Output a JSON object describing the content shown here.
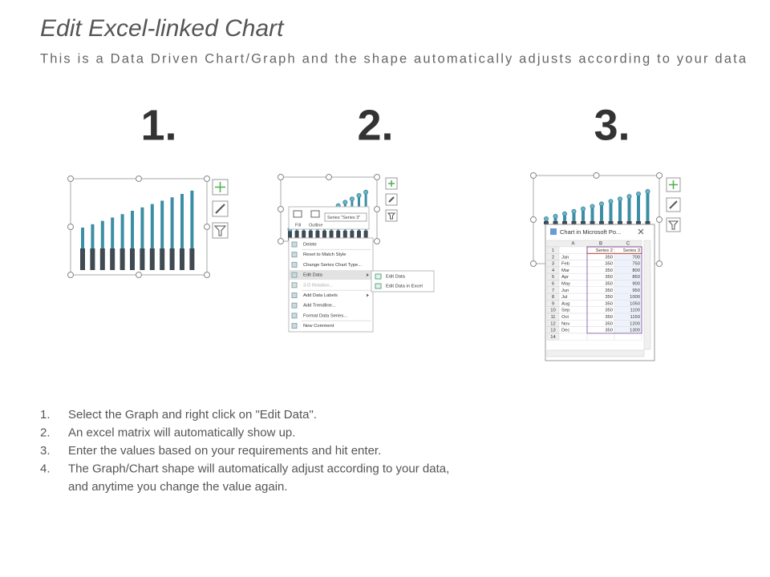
{
  "header": {
    "title": "Edit Excel-linked Chart",
    "subtitle": "This is a Data Driven Chart/Graph and the shape automatically adjusts according to your data"
  },
  "step_numbers": [
    "1.",
    "2.",
    "3."
  ],
  "panel2": {
    "toolbar": {
      "fill": "Fill",
      "outline": "Outline",
      "series": "Series \"Series 3\""
    },
    "menu": [
      "Delete",
      "Reset to Match Style",
      "Change Series Chart Type...",
      "Edit Data",
      "3-D Rotation...",
      "Add Data Labels",
      "Add Trendline...",
      "Format Data Series...",
      "New Comment"
    ],
    "submenu": [
      "Edit Data",
      "Edit Data in Excel"
    ]
  },
  "panel3": {
    "window_title": "Chart in Microsoft Po...",
    "columns": [
      "A",
      "B",
      "C"
    ],
    "rows": [
      [
        "1",
        "",
        "Series 2",
        "Series 3"
      ],
      [
        "2",
        "Jan",
        350,
        700
      ],
      [
        "3",
        "Feb",
        350,
        750
      ],
      [
        "4",
        "Mar",
        350,
        800
      ],
      [
        "5",
        "Apr",
        350,
        850
      ],
      [
        "6",
        "May",
        350,
        900
      ],
      [
        "7",
        "Jun",
        350,
        950
      ],
      [
        "8",
        "Jul",
        350,
        1000
      ],
      [
        "9",
        "Aug",
        350,
        1050
      ],
      [
        "10",
        "Sep",
        350,
        1100
      ],
      [
        "11",
        "Oct",
        350,
        1150
      ],
      [
        "12",
        "Nov",
        350,
        1200
      ],
      [
        "13",
        "Dec",
        350,
        1300
      ],
      [
        "14",
        "",
        "",
        ""
      ]
    ]
  },
  "instructions": [
    {
      "number": "1.",
      "lines": [
        "Select the Graph and right click on \"Edit Data\"."
      ]
    },
    {
      "number": "2.",
      "lines": [
        "An excel matrix will automatically show up."
      ]
    },
    {
      "number": "3.",
      "lines": [
        "Enter the values based on your requirements and hit enter."
      ]
    },
    {
      "number": "4.",
      "lines": [
        "The Graph/Chart shape will automatically adjust according to your data,",
        "and anytime you change the value again."
      ]
    }
  ]
}
